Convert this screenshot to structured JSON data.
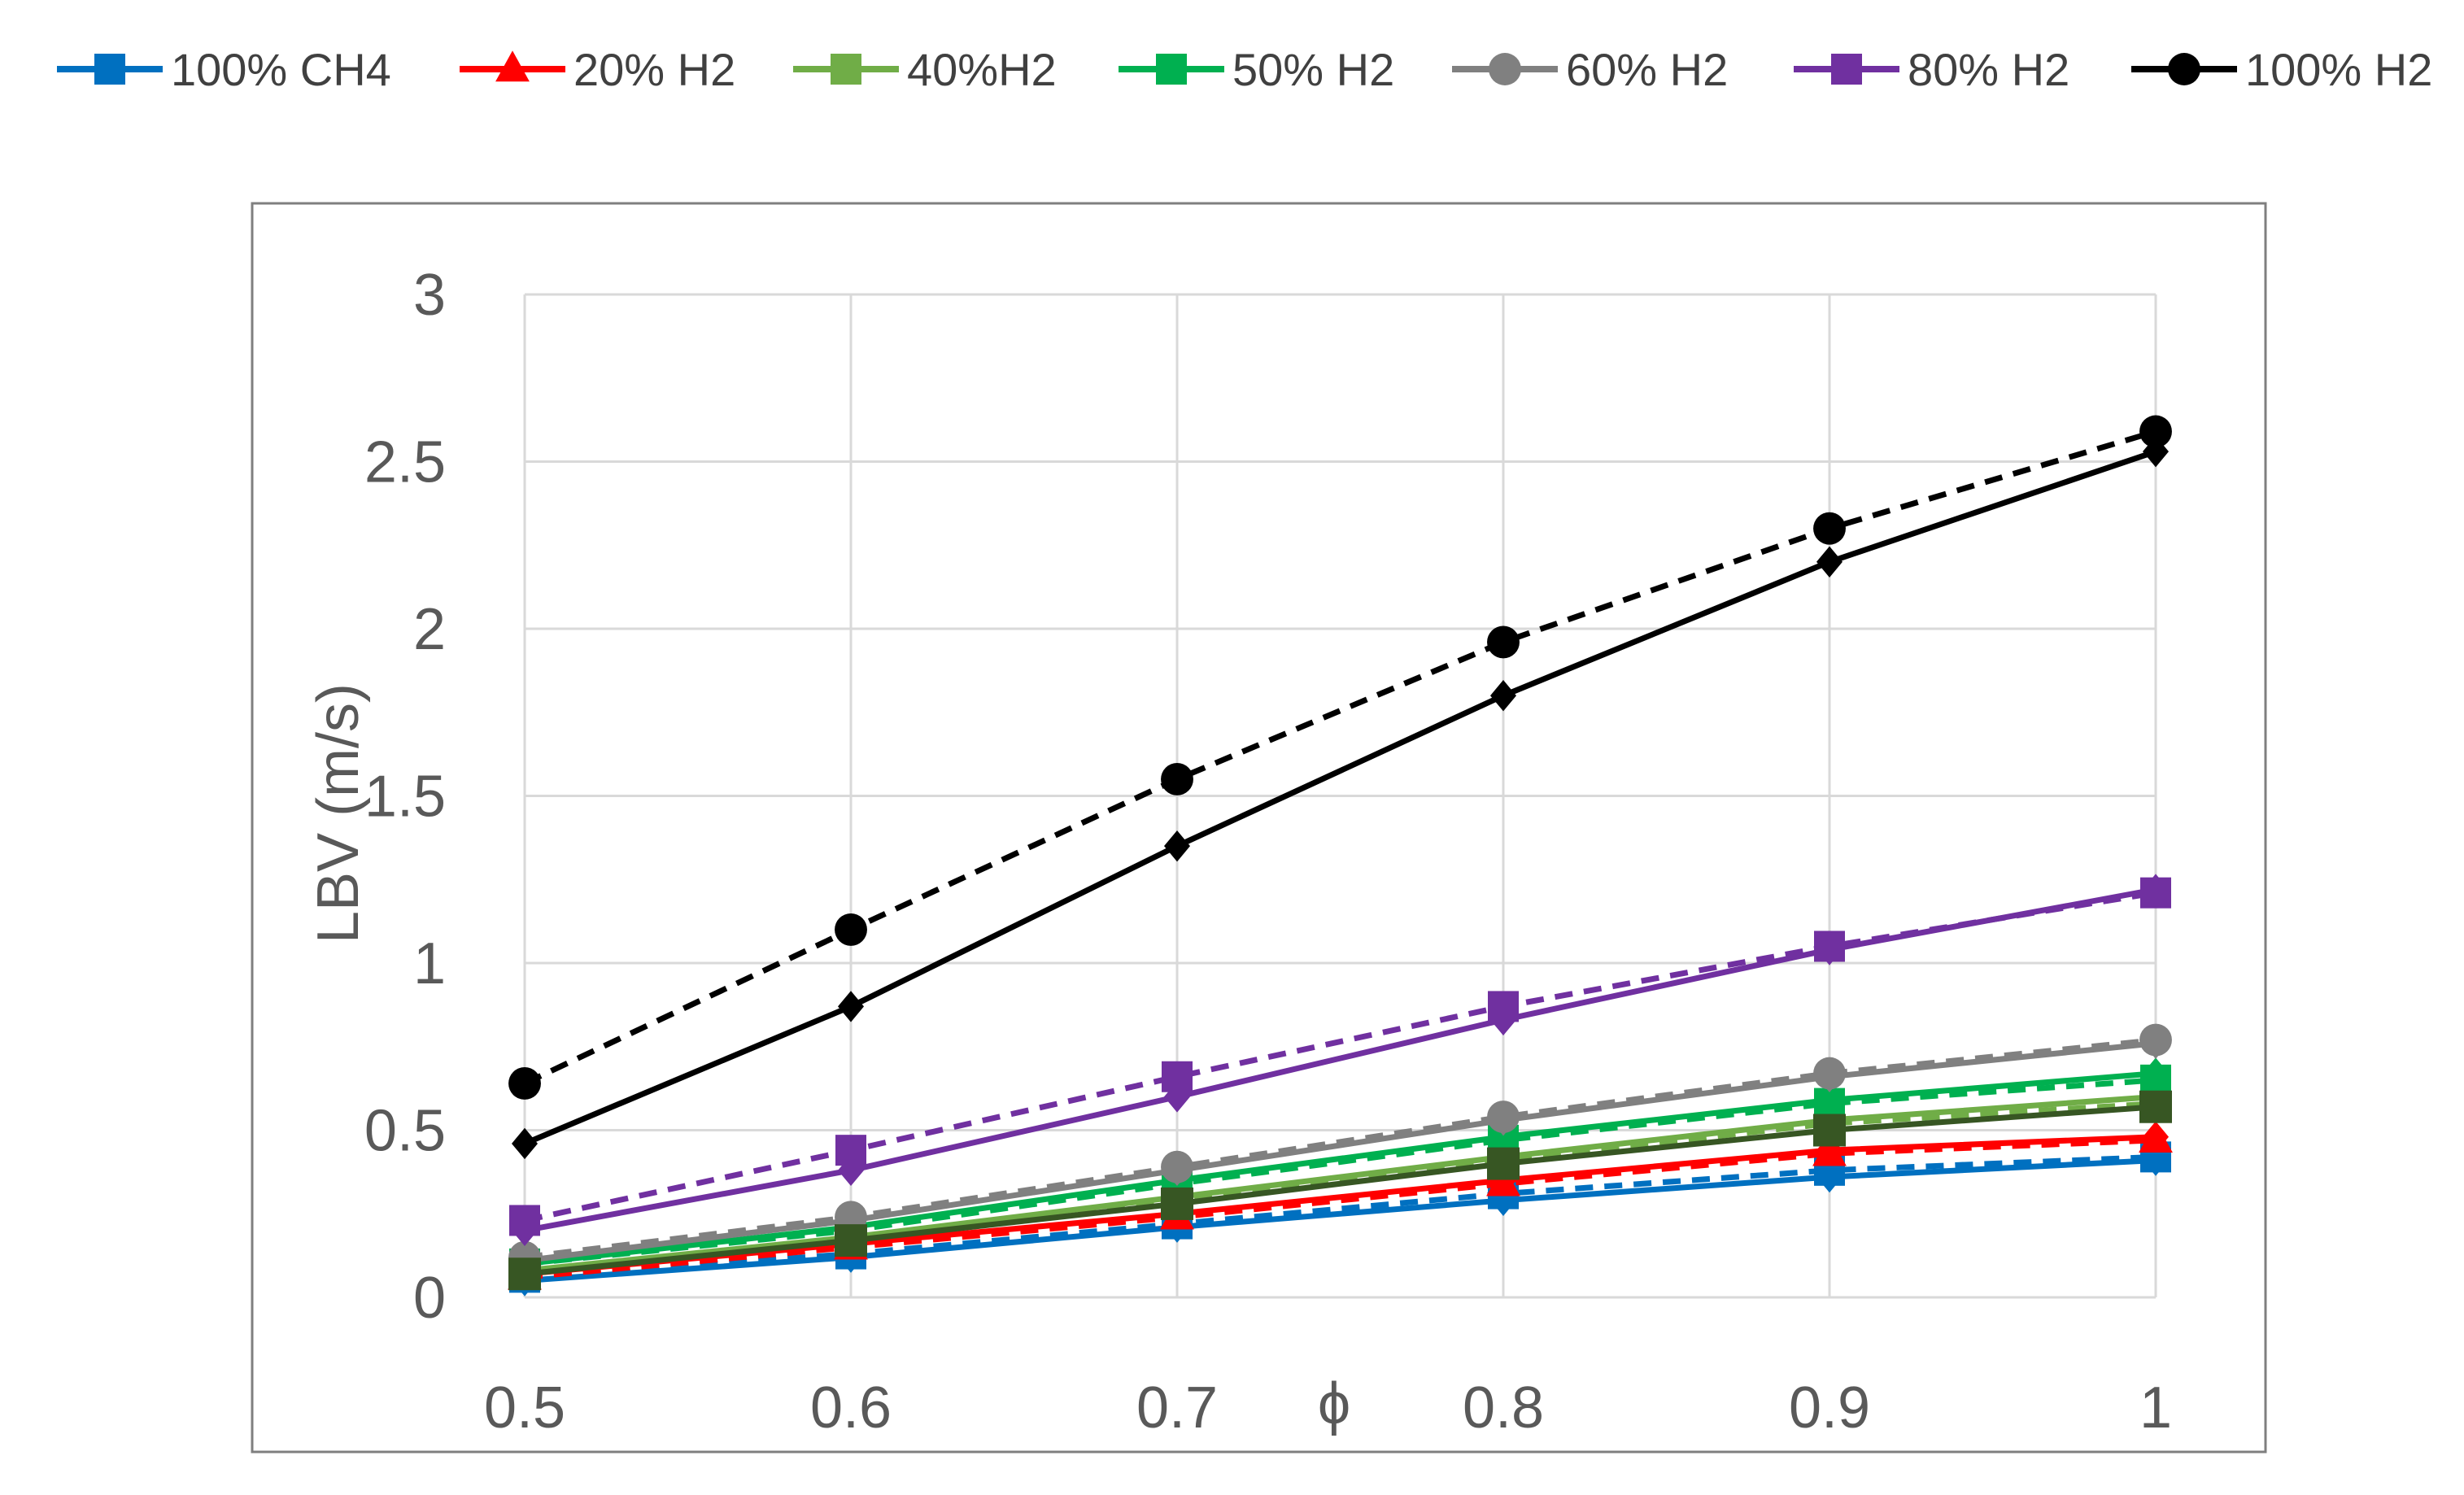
{
  "chart_data": {
    "type": "line",
    "title": "",
    "xlabel": "ϕ",
    "ylabel": "LBV (m/s)",
    "x": [
      0.5,
      0.6,
      0.7,
      0.8,
      0.9,
      1
    ],
    "x_tick_labels": [
      "0.5",
      "0.6",
      "0.7",
      "0.8",
      "0.9",
      "1"
    ],
    "xlim": [
      0.5,
      1
    ],
    "y_ticks": [
      0,
      0.5,
      1,
      1.5,
      2,
      2.5,
      3
    ],
    "y_tick_labels": [
      "0",
      "0.5",
      "1",
      "1.5",
      "2",
      "2.5",
      "3"
    ],
    "ylim": [
      0,
      3
    ],
    "grid": true,
    "legend_position": "top",
    "series": [
      {
        "name": "100% CH4",
        "color": "#0070C0",
        "marker": "square",
        "values": [
          0.06,
          0.13,
          0.22,
          0.31,
          0.38,
          0.42
        ],
        "companion": {
          "marker": "diamond",
          "values": [
            0.05,
            0.12,
            0.21,
            0.29,
            0.36,
            0.41
          ]
        }
      },
      {
        "name": "20% H2",
        "color": "#FF0000",
        "marker": "triangle",
        "values": [
          0.06,
          0.15,
          0.24,
          0.34,
          0.43,
          0.47
        ],
        "companion": {
          "marker": "diamond",
          "values": [
            0.07,
            0.16,
            0.25,
            0.35,
            0.44,
            0.48
          ]
        }
      },
      {
        "name": "40%H2",
        "color": "#70AD47",
        "marker": "square",
        "values": [
          0.08,
          0.17,
          0.29,
          0.41,
          0.52,
          0.58
        ],
        "companion": {
          "marker": "diamond",
          "values": [
            0.08,
            0.18,
            0.3,
            0.42,
            0.53,
            0.6
          ]
        }
      },
      {
        "name": "50% H2",
        "color": "#00B050",
        "marker": "square",
        "values": [
          0.1,
          0.2,
          0.34,
          0.47,
          0.58,
          0.65
        ],
        "companion": {
          "marker": "diamond",
          "values": [
            0.1,
            0.21,
            0.35,
            0.48,
            0.59,
            0.67
          ]
        }
      },
      {
        "name": "60% H2",
        "color": "#808080",
        "marker": "circle",
        "values": [
          0.12,
          0.24,
          0.39,
          0.54,
          0.67,
          0.77
        ],
        "companion": {
          "marker": "diamond",
          "values": [
            0.11,
            0.23,
            0.38,
            0.53,
            0.66,
            0.76
          ]
        }
      },
      {
        "name": "80% H2",
        "color": "#7030A0",
        "marker": "square",
        "values": [
          0.23,
          0.44,
          0.66,
          0.87,
          1.05,
          1.21
        ],
        "companion": {
          "marker": "diamond",
          "values": [
            0.2,
            0.38,
            0.6,
            0.83,
            1.04,
            1.22
          ]
        }
      },
      {
        "name": "100% H2",
        "color": "#000000",
        "marker": "circle",
        "values": [
          0.64,
          1.1,
          1.55,
          1.96,
          2.3,
          2.59
        ],
        "companion": {
          "marker": "diamond",
          "values": [
            0.46,
            0.87,
            1.35,
            1.8,
            2.2,
            2.53
          ]
        }
      }
    ],
    "unlabeled_series": [
      {
        "color": "#375623",
        "marker": "square",
        "values": [
          0.07,
          0.17,
          0.28,
          0.4,
          0.5,
          0.57
        ]
      }
    ]
  }
}
